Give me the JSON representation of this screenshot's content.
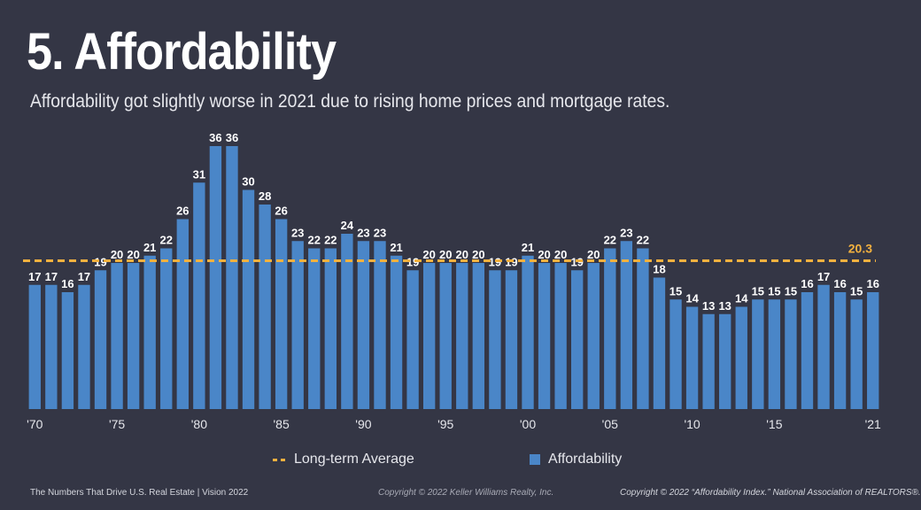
{
  "title": "5. Affordability",
  "subtitle": "Affordability got slightly worse in 2021 due to rising home prices and mortgage rates.",
  "legend": {
    "average_label": "Long-term Average",
    "bar_label": "Affordability"
  },
  "footer": {
    "left": "The Numbers That Drive U.S. Real Estate  |  Vision 2022",
    "middle": "Copyright © 2022 Keller Williams Realty, Inc.",
    "right": "Copyright © 2022 “Affordability Index.” National Association of REALTORS®."
  },
  "colors": {
    "bar": "#4a86c8",
    "average_line": "#f3b13f",
    "background": "#343645"
  },
  "chart_data": {
    "type": "bar",
    "title": "5. Affordability",
    "series": [
      {
        "name": "Affordability",
        "values": [
          17,
          17,
          16,
          17,
          19,
          20,
          20,
          21,
          22,
          26,
          31,
          36,
          36,
          30,
          28,
          26,
          23,
          22,
          22,
          24,
          23,
          23,
          21,
          19,
          20,
          20,
          20,
          20,
          19,
          19,
          21,
          20,
          20,
          19,
          20,
          22,
          23,
          22,
          18,
          15,
          14,
          13,
          13,
          14,
          15,
          15,
          15,
          16,
          17,
          16,
          15,
          16
        ]
      }
    ],
    "categories": [
      "1970",
      "1971",
      "1972",
      "1973",
      "1974",
      "1975",
      "1976",
      "1977",
      "1978",
      "1979",
      "1980",
      "1981",
      "1982",
      "1983",
      "1984",
      "1985",
      "1986",
      "1987",
      "1988",
      "1989",
      "1990",
      "1991",
      "1992",
      "1993",
      "1994",
      "1995",
      "1996",
      "1997",
      "1998",
      "1999",
      "2000",
      "2001",
      "2002",
      "2003",
      "2004",
      "2005",
      "2006",
      "2007",
      "2008",
      "2009",
      "2010",
      "2011",
      "2012",
      "2013",
      "2014",
      "2015",
      "2016",
      "2017",
      "2018",
      "2019",
      "2020",
      "2021"
    ],
    "tick_labels": [
      "'70",
      "'75",
      "'80",
      "'85",
      "'90",
      "'95",
      "'00",
      "'05",
      "'10",
      "'15",
      "'21"
    ],
    "tick_indices": [
      0,
      5,
      10,
      15,
      20,
      25,
      30,
      35,
      40,
      45,
      51
    ],
    "reference_line": {
      "name": "Long-term Average",
      "value": 20.3,
      "label": "20.3"
    },
    "xlabel": "",
    "ylabel": "",
    "ylim": [
      0,
      36
    ]
  }
}
